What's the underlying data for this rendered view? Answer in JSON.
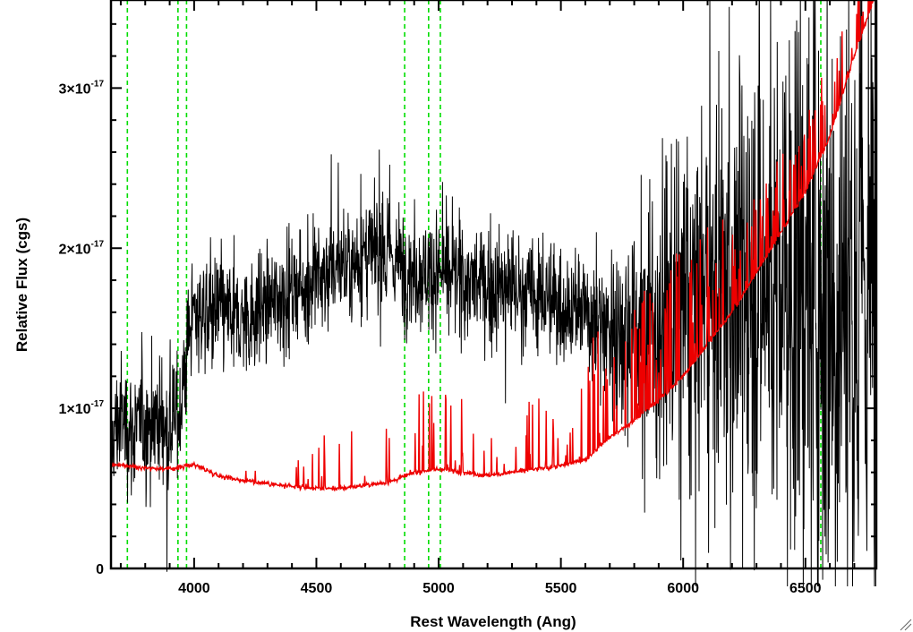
{
  "chart_data": {
    "type": "line",
    "title": "",
    "xlabel": "Rest Wavelength (Ang)",
    "ylabel": "Relative Flux (cgs)",
    "xlim": [
      3660,
      6790
    ],
    "ylim": [
      0,
      3.55e-17
    ],
    "x_ticks": [
      {
        "value": 4000,
        "label": "4000"
      },
      {
        "value": 4500,
        "label": "4500"
      },
      {
        "value": 5000,
        "label": "5000"
      },
      {
        "value": 5500,
        "label": "5500"
      },
      {
        "value": 6000,
        "label": "6000"
      },
      {
        "value": 6500,
        "label": "6500"
      }
    ],
    "y_ticks": [
      {
        "value": 0,
        "mant": "0",
        "exp": ""
      },
      {
        "value": 1e-17,
        "mant": "1×10",
        "exp": "-17"
      },
      {
        "value": 2e-17,
        "mant": "2×10",
        "exp": "-17"
      },
      {
        "value": 3e-17,
        "mant": "3×10",
        "exp": "-17"
      }
    ],
    "reference_lines": [
      3727,
      3934,
      3969,
      4861,
      4959,
      5007,
      6563
    ],
    "reference_line_color": "#00dd00",
    "series": [
      {
        "color": "#000000",
        "description_points": [
          [
            3660,
            8e-18
          ],
          [
            3700,
            9.5e-18
          ],
          [
            3750,
            8.5e-18
          ],
          [
            3800,
            9e-18
          ],
          [
            3850,
            9.5e-18
          ],
          [
            3900,
            8.5e-18
          ],
          [
            3950,
            1.05e-17
          ],
          [
            3980,
            1.5e-17
          ],
          [
            4000,
            1.6e-17
          ],
          [
            4100,
            1.6e-17
          ],
          [
            4200,
            1.55e-17
          ],
          [
            4300,
            1.65e-17
          ],
          [
            4400,
            1.75e-17
          ],
          [
            4500,
            1.8e-17
          ],
          [
            4600,
            1.9e-17
          ],
          [
            4700,
            1.95e-17
          ],
          [
            4800,
            1.95e-17
          ],
          [
            4900,
            1.85e-17
          ],
          [
            5000,
            1.85e-17
          ],
          [
            5100,
            1.8e-17
          ],
          [
            5200,
            1.75e-17
          ],
          [
            5300,
            1.75e-17
          ],
          [
            5400,
            1.7e-17
          ],
          [
            5500,
            1.65e-17
          ],
          [
            5600,
            1.6e-17
          ],
          [
            5700,
            1.5e-17
          ],
          [
            5800,
            1.5e-17
          ],
          [
            5900,
            1.5e-17
          ],
          [
            6000,
            1.6e-17
          ],
          [
            6100,
            1.7e-17
          ],
          [
            6200,
            1.75e-17
          ],
          [
            6300,
            1.8e-17
          ],
          [
            6400,
            1.8e-17
          ],
          [
            6500,
            1.8e-17
          ],
          [
            6600,
            1.8e-17
          ],
          [
            6700,
            1.8e-17
          ],
          [
            6790,
            1.8e-17
          ]
        ]
      },
      {
        "color": "#ee0000",
        "description_points": [
          [
            3660,
            6.5e-18
          ],
          [
            3800,
            6.3e-18
          ],
          [
            3900,
            6.2e-18
          ],
          [
            4000,
            6.5e-18
          ],
          [
            4100,
            5.8e-18
          ],
          [
            4200,
            5.5e-18
          ],
          [
            4300,
            5.3e-18
          ],
          [
            4400,
            5.1e-18
          ],
          [
            4500,
            5e-18
          ],
          [
            4600,
            5e-18
          ],
          [
            4700,
            5.2e-18
          ],
          [
            4800,
            5.4e-18
          ],
          [
            4900,
            6e-18
          ],
          [
            5000,
            6.2e-18
          ],
          [
            5100,
            6e-18
          ],
          [
            5200,
            5.8e-18
          ],
          [
            5300,
            6e-18
          ],
          [
            5400,
            6.2e-18
          ],
          [
            5500,
            6.4e-18
          ],
          [
            5600,
            6.8e-18
          ],
          [
            5700,
            8.2e-18
          ],
          [
            5800,
            9.2e-18
          ],
          [
            5900,
            1.05e-17
          ],
          [
            6000,
            1.2e-17
          ],
          [
            6100,
            1.4e-17
          ],
          [
            6200,
            1.6e-17
          ],
          [
            6300,
            1.85e-17
          ],
          [
            6400,
            2.1e-17
          ],
          [
            6500,
            2.35e-17
          ],
          [
            6600,
            2.7e-17
          ],
          [
            6700,
            3.2e-17
          ],
          [
            6790,
            3.6e-17
          ]
        ]
      }
    ]
  }
}
